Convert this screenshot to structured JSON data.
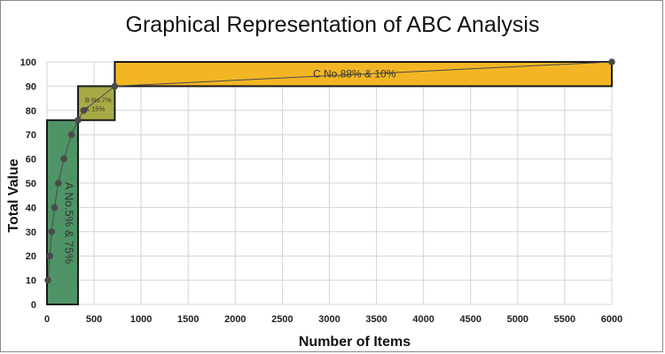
{
  "chart_data": {
    "type": "line",
    "title": "Graphical Representation of ABC Analysis",
    "xlabel": "Number of Items",
    "ylabel": "Total Value",
    "xlim": [
      0,
      6000
    ],
    "ylim": [
      0,
      100
    ],
    "x_ticks": [
      0,
      500,
      1000,
      1500,
      2000,
      2500,
      3000,
      3500,
      4000,
      4500,
      5000,
      5500,
      6000
    ],
    "y_ticks": [
      0,
      10,
      20,
      30,
      40,
      50,
      60,
      70,
      80,
      90,
      100
    ],
    "grid": true,
    "series": [
      {
        "x": [
          10,
          30,
          50,
          80,
          120,
          180,
          260,
          330,
          390,
          720,
          6000
        ],
        "y": [
          10,
          20,
          30,
          40,
          50,
          60,
          70,
          76,
          80,
          90,
          100
        ],
        "color": "#4a4a4a"
      }
    ],
    "regions": [
      {
        "label": "A No.5% & 75%",
        "x": [
          0,
          330
        ],
        "y": [
          0,
          76
        ],
        "color": "#4f9466"
      },
      {
        "label_lines": [
          "B No.7%",
          "& 15%"
        ],
        "x": [
          330,
          720
        ],
        "y": [
          76,
          90
        ],
        "color": "#a8aa45"
      },
      {
        "label": "C No.88% & 10%",
        "x": [
          720,
          6000
        ],
        "y": [
          90,
          100
        ],
        "color": "#f2b624"
      }
    ]
  }
}
